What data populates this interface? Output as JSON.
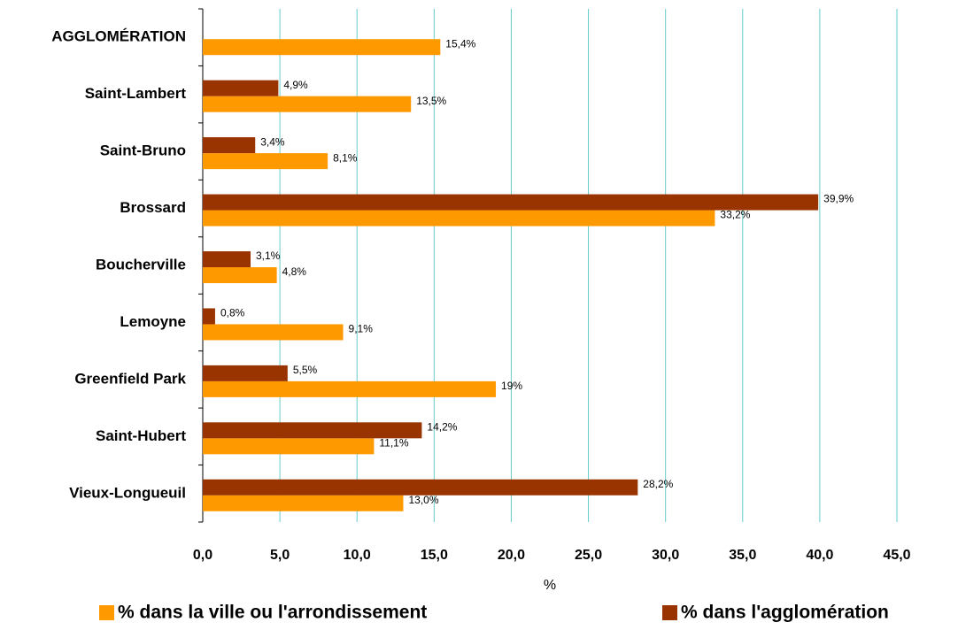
{
  "chart_data": {
    "type": "hbar",
    "xlabel": "%",
    "categories": [
      "AGGLOMÉRATION",
      "Saint-Lambert",
      "Saint-Bruno",
      "Brossard",
      "Boucherville",
      "Lemoyne",
      "Greenfield Park",
      "Saint-Hubert",
      "Vieux-Longueuil"
    ],
    "series": [
      {
        "name": "% dans la ville ou l'arrondissement",
        "color": "#FF9900",
        "values": [
          15.4,
          13.5,
          8.1,
          33.2,
          4.8,
          9.1,
          19,
          11.1,
          13.0
        ],
        "value_labels": [
          "15,4%",
          "13,5%",
          "8,1%",
          "33,2%",
          "4,8%",
          "9,1%",
          "19%",
          "11,1%",
          "13,0%"
        ]
      },
      {
        "name": "% dans l'agglomération",
        "color": "#993300",
        "values": [
          null,
          4.9,
          3.4,
          39.9,
          3.1,
          0.8,
          5.5,
          14.2,
          28.2
        ],
        "value_labels": [
          null,
          "4,9%",
          "3,4%",
          "39,9%",
          "3,1%",
          "0,8%",
          "5,5%",
          "14,2%",
          "28,2%"
        ]
      }
    ],
    "xlim": [
      0,
      45
    ],
    "xticks": [
      {
        "value": 0,
        "label": "0,0"
      },
      {
        "value": 5,
        "label": "5,0"
      },
      {
        "value": 10,
        "label": "10,0"
      },
      {
        "value": 15,
        "label": "15,0"
      },
      {
        "value": 20,
        "label": "20,0"
      },
      {
        "value": 25,
        "label": "25,0"
      },
      {
        "value": 30,
        "label": "30,0"
      },
      {
        "value": 35,
        "label": "35,0"
      },
      {
        "value": 40,
        "label": "40,0"
      },
      {
        "value": 45,
        "label": "45,0"
      }
    ],
    "grid": true,
    "grid_color": "#66CCCC",
    "legend": "bottom"
  }
}
